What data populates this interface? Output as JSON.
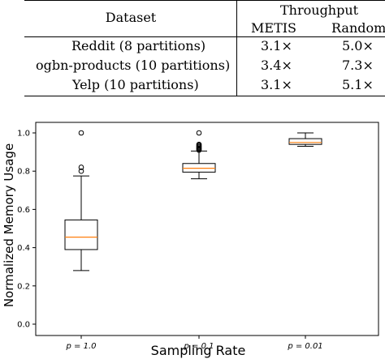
{
  "table": {
    "header": {
      "dataset_label": "Dataset",
      "throughput_label": "Throughput",
      "columns": [
        "METIS",
        "Random"
      ]
    },
    "rows": [
      {
        "dataset": "Reddit (8 partitions)",
        "metis": "3.1×",
        "random": "5.0×"
      },
      {
        "dataset": "ogbn-products (10 partitions)",
        "metis": "3.4×",
        "random": "7.3×"
      },
      {
        "dataset": "Yelp (10 partitions)",
        "metis": "3.1×",
        "random": "5.1×"
      }
    ]
  },
  "chart_data": {
    "type": "box",
    "xlabel": "Sampling Rate",
    "ylabel": "Normalized Memory Usage",
    "ylim": [
      0.0,
      1.0
    ],
    "yticks": [
      "0.0",
      "0.2",
      "0.4",
      "0.6",
      "0.8",
      "1.0"
    ],
    "categories": [
      "p = 1.0",
      "p = 0.1",
      "p = 0.01"
    ],
    "boxes": [
      {
        "min": 0.28,
        "q1": 0.39,
        "median": 0.455,
        "q3": 0.545,
        "max": 0.775,
        "outliers": [
          0.8,
          0.82,
          1.0
        ]
      },
      {
        "min": 0.76,
        "q1": 0.795,
        "median": 0.815,
        "q3": 0.84,
        "max": 0.905,
        "outliers": [
          0.91,
          0.915,
          0.92,
          0.925,
          0.93,
          0.935,
          0.94,
          1.0
        ]
      },
      {
        "min": 0.93,
        "q1": 0.94,
        "median": 0.95,
        "q3": 0.97,
        "max": 1.0,
        "outliers": []
      }
    ],
    "colors": {
      "box": "#000000",
      "median": "#ff7f0e"
    }
  }
}
